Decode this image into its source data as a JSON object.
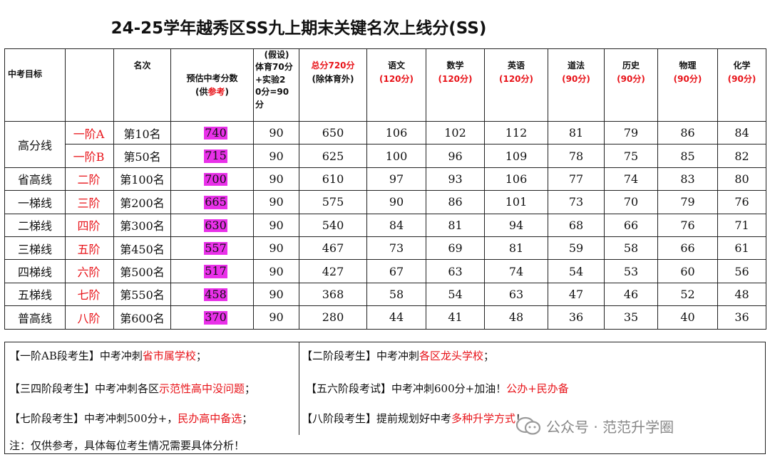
{
  "title": "24-25学年越秀区SS九上期末关键名次上线分(SS)",
  "headers": {
    "target": "中考目标",
    "rank": "名次",
    "est_line1": "预估中考分数",
    "est_line2_pre": "(供",
    "est_line2_red": "参考",
    "est_line2_post": ")",
    "pe_line1": "(假设)",
    "pe_line2": "体育70分",
    "pe_line3": "+实验2",
    "pe_line4": "0分=90",
    "pe_line5": "分",
    "total_line1": "总分720分",
    "total_line2": "(除体育外)",
    "subjects": [
      {
        "name": "语文",
        "full": "(120分)"
      },
      {
        "name": "数学",
        "full": "(120分)"
      },
      {
        "name": "英语",
        "full": "(120分)"
      },
      {
        "name": "道法",
        "full": "(90分)"
      },
      {
        "name": "历史",
        "full": "(90分)"
      },
      {
        "name": "物理",
        "full": "(90分)"
      },
      {
        "name": "化学",
        "full": "(90分)"
      }
    ]
  },
  "rows": [
    {
      "level": "高分线",
      "tier": "一阶A",
      "rank": "第10名",
      "estimate": "740",
      "pe": "90",
      "total": "650",
      "chinese": "106",
      "math": "102",
      "english": "112",
      "politics": "81",
      "history": "79",
      "physics": "86",
      "chemistry": "84"
    },
    {
      "level": "",
      "tier": "一阶B",
      "rank": "第50名",
      "estimate": "715",
      "pe": "90",
      "total": "625",
      "chinese": "100",
      "math": "96",
      "english": "109",
      "politics": "78",
      "history": "75",
      "physics": "85",
      "chemistry": "82"
    },
    {
      "level": "省高线",
      "tier": "二阶",
      "rank": "第100名",
      "estimate": "700",
      "pe": "90",
      "total": "610",
      "chinese": "97",
      "math": "93",
      "english": "106",
      "politics": "77",
      "history": "74",
      "physics": "83",
      "chemistry": "80"
    },
    {
      "level": "一梯线",
      "tier": "三阶",
      "rank": "第200名",
      "estimate": "665",
      "pe": "90",
      "total": "575",
      "chinese": "90",
      "math": "86",
      "english": "101",
      "politics": "73",
      "history": "70",
      "physics": "79",
      "chemistry": "76"
    },
    {
      "level": "二梯线",
      "tier": "四阶",
      "rank": "第300名",
      "estimate": "630",
      "pe": "90",
      "total": "540",
      "chinese": "84",
      "math": "81",
      "english": "94",
      "politics": "68",
      "history": "66",
      "physics": "76",
      "chemistry": "71"
    },
    {
      "level": "三梯线",
      "tier": "五阶",
      "rank": "第450名",
      "estimate": "557",
      "pe": "90",
      "total": "467",
      "chinese": "73",
      "math": "69",
      "english": "81",
      "politics": "59",
      "history": "58",
      "physics": "66",
      "chemistry": "61"
    },
    {
      "level": "四梯线",
      "tier": "六阶",
      "rank": "第500名",
      "estimate": "517",
      "pe": "90",
      "total": "427",
      "chinese": "67",
      "math": "63",
      "english": "74",
      "politics": "54",
      "history": "53",
      "physics": "60",
      "chemistry": "56"
    },
    {
      "level": "五梯线",
      "tier": "七阶",
      "rank": "第550名",
      "estimate": "458",
      "pe": "90",
      "total": "368",
      "chinese": "58",
      "math": "54",
      "english": "63",
      "politics": "47",
      "history": "46",
      "physics": "52",
      "chemistry": "48"
    },
    {
      "level": "普高线",
      "tier": "八阶",
      "rank": "第600名",
      "estimate": "370",
      "pe": "90",
      "total": "280",
      "chinese": "44",
      "math": "41",
      "english": "48",
      "politics": "36",
      "history": "35",
      "physics": "40",
      "chemistry": "36"
    }
  ],
  "notes": {
    "n1_black": "【一阶AB段考生】中考冲刺",
    "n1_red": "省市属学校",
    "n1_tail": "；",
    "n2_black": "【二阶段考生】中考冲刺",
    "n2_red": "各区龙头学校",
    "n2_tail": "；",
    "n3_black": "【三四阶段考生】中考冲刺各区",
    "n3_red": "示范性高中没问题",
    "n3_tail": "；",
    "n4_black": "【五六阶段考试】中考冲刺600分+加油！",
    "n4_red": "公办+民办备",
    "n5_black": "【七阶段考生】中考冲刺500分+，",
    "n5_red": "民办高中备选",
    "n5_tail": "；",
    "n6_black": "【八阶段考生】提前规划好中考",
    "n6_red": "多种升学方式",
    "n6_tail": "！",
    "n7": "注：仅供参考，具体每位考生情况需要具体分析！"
  },
  "watermark": "公众号 · 范范升学圈",
  "colors": {
    "accent_red": "#e8141a",
    "highlight_magenta": "#e930e9"
  }
}
